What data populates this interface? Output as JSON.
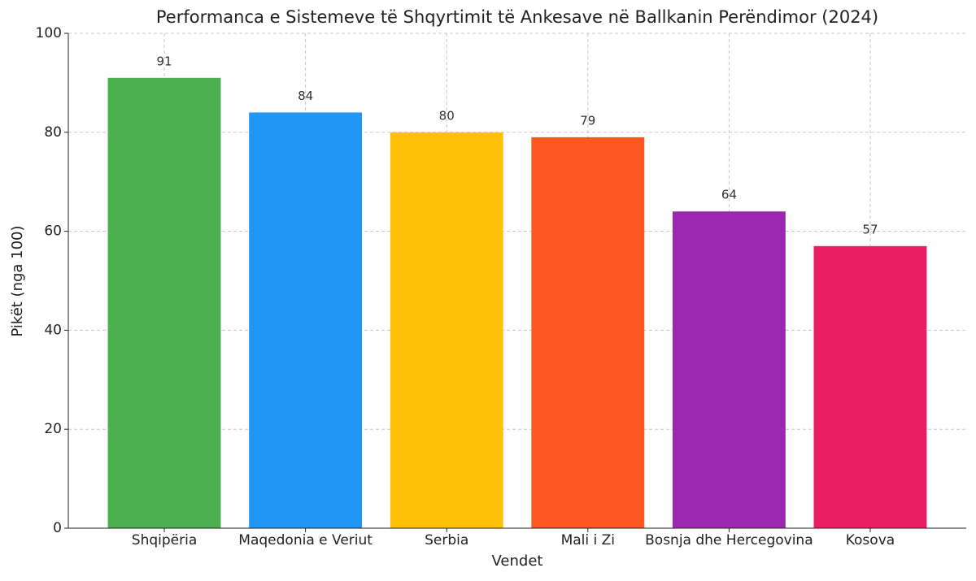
{
  "chart_data": {
    "type": "bar",
    "title": "Performanca e Sistemeve të Shqyrtimit të Ankesave në Ballkanin Perëndimor (2024)",
    "x_label": "Vendet",
    "y_label": "Pikët (nga 100)",
    "categories": [
      "Shqipëria",
      "Maqedonia e Veriut",
      "Serbia",
      "Mali i Zi",
      "Bosnja dhe Hercegovina",
      "Kosova"
    ],
    "values": [
      91,
      84,
      80,
      79,
      64,
      57
    ],
    "colors": [
      "#4caf50",
      "#2196f3",
      "#ffc107",
      "#ff5722",
      "#9c27b0",
      "#e91e63"
    ],
    "ylim": [
      0,
      100
    ],
    "yticks": [
      0,
      20,
      40,
      60,
      80,
      100
    ],
    "grid": true
  }
}
